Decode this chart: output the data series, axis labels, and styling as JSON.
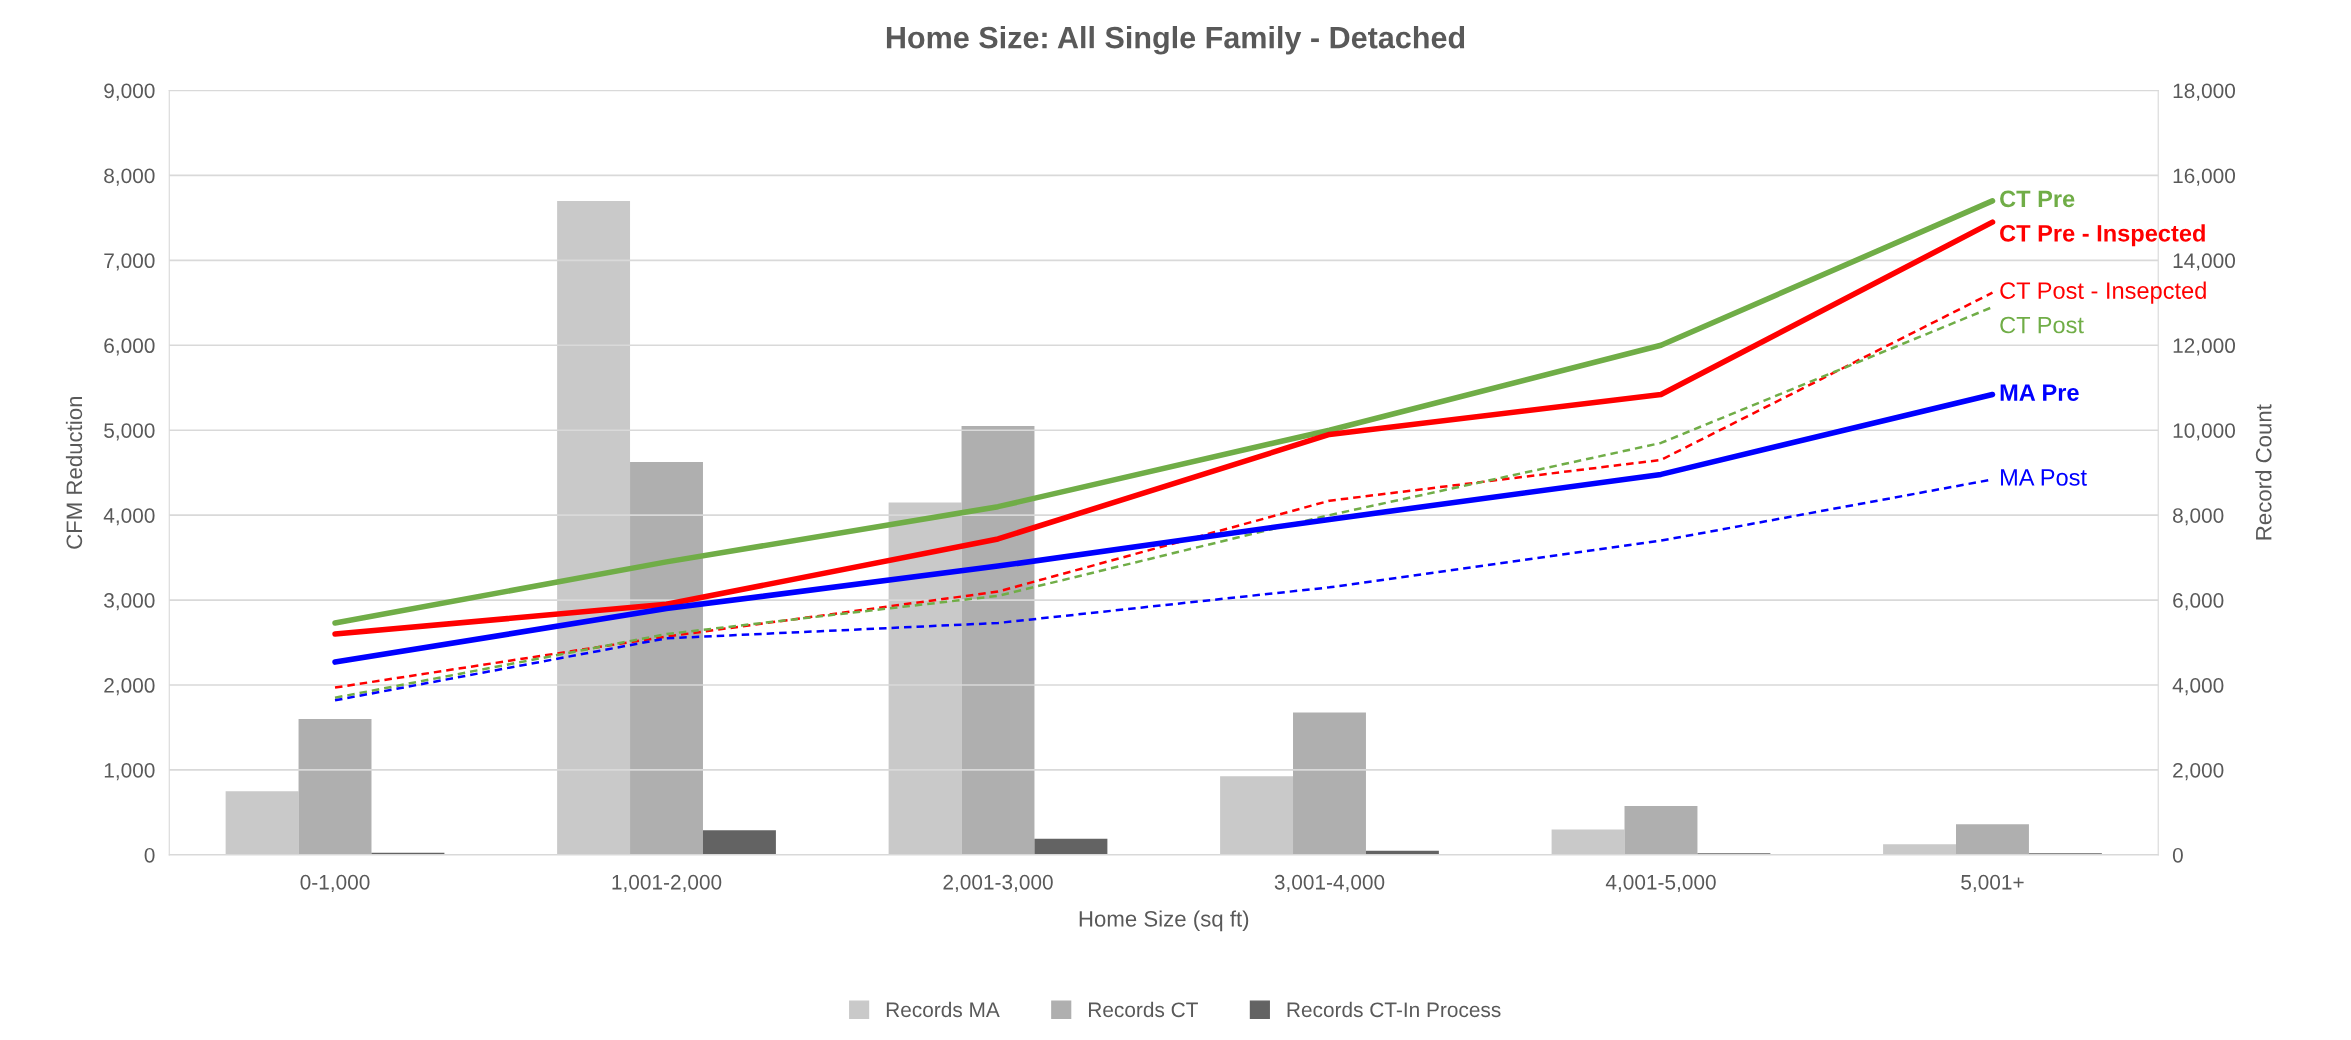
{
  "chart_data": {
    "type": "bar",
    "title": "Home Size: All Single Family - Detached",
    "xlabel": "Home Size (sq ft)",
    "ylabel": "CFM Reduction",
    "y2label": "Record Count",
    "categories": [
      "0-1,000",
      "1,001-2,000",
      "2,001-3,000",
      "3,001-4,000",
      "4,001-5,000",
      "5,001+"
    ],
    "series": [
      {
        "name": "Records MA",
        "axis": "y2",
        "color": "#c9c9c9",
        "values": [
          1500,
          15400,
          8300,
          1850,
          600,
          250
        ]
      },
      {
        "name": "Records CT",
        "axis": "y2",
        "color": "#afafaf",
        "values": [
          3200,
          9250,
          10100,
          3350,
          1150,
          720
        ]
      },
      {
        "name": "Records CT-In Process",
        "axis": "y2",
        "color": "#636363",
        "values": [
          50,
          580,
          380,
          100,
          40,
          40
        ]
      },
      {
        "name": "CT Pre",
        "type": "line",
        "line_style": "solid",
        "color": "#70ad47",
        "values": [
          2730,
          3450,
          4100,
          5000,
          6000,
          7700
        ]
      },
      {
        "name": "CT Pre - Inspected",
        "type": "line",
        "line_style": "solid",
        "color": "#ff0000",
        "values": [
          2600,
          2950,
          3720,
          4950,
          5420,
          7450
        ]
      },
      {
        "name": "CT Post - Insepcted",
        "type": "line",
        "line_style": "dashed",
        "color": "#ff0000",
        "values": [
          1970,
          2570,
          3100,
          4170,
          4650,
          6620
        ]
      },
      {
        "name": "CT Post",
        "type": "line",
        "line_style": "dashed",
        "color": "#70ad47",
        "values": [
          1850,
          2600,
          3050,
          4000,
          4850,
          6450
        ]
      },
      {
        "name": "MA Pre",
        "type": "line",
        "line_style": "solid",
        "color": "#0000ff",
        "values": [
          2270,
          2900,
          3400,
          3950,
          4480,
          5420
        ]
      },
      {
        "name": "MA Post",
        "type": "line",
        "line_style": "dashed",
        "color": "#0000ff",
        "values": [
          1820,
          2550,
          2730,
          3150,
          3700,
          4420
        ]
      }
    ],
    "ylim": [
      0,
      9000
    ],
    "yticks": [
      {
        "value": 0,
        "label": "0"
      },
      {
        "value": 1000,
        "label": "1,000"
      },
      {
        "value": 2000,
        "label": "2,000"
      },
      {
        "value": 3000,
        "label": "3,000"
      },
      {
        "value": 4000,
        "label": "4,000"
      },
      {
        "value": 5000,
        "label": "5,000"
      },
      {
        "value": 6000,
        "label": "6,000"
      },
      {
        "value": 7000,
        "label": "7,000"
      },
      {
        "value": 8000,
        "label": "8,000"
      },
      {
        "value": 9000,
        "label": "9,000"
      }
    ],
    "y2lim": [
      0,
      18000
    ],
    "y2ticks": [
      {
        "value": 0,
        "label": "0"
      },
      {
        "value": 2000,
        "label": "2,000"
      },
      {
        "value": 4000,
        "label": "4,000"
      },
      {
        "value": 6000,
        "label": "6,000"
      },
      {
        "value": 8000,
        "label": "8,000"
      },
      {
        "value": 10000,
        "label": "10,000"
      },
      {
        "value": 12000,
        "label": "12,000"
      },
      {
        "value": 14000,
        "label": "14,000"
      },
      {
        "value": 16000,
        "label": "16,000"
      },
      {
        "value": 18000,
        "label": "18,000"
      }
    ],
    "grid": "y",
    "legend": "bottom"
  }
}
